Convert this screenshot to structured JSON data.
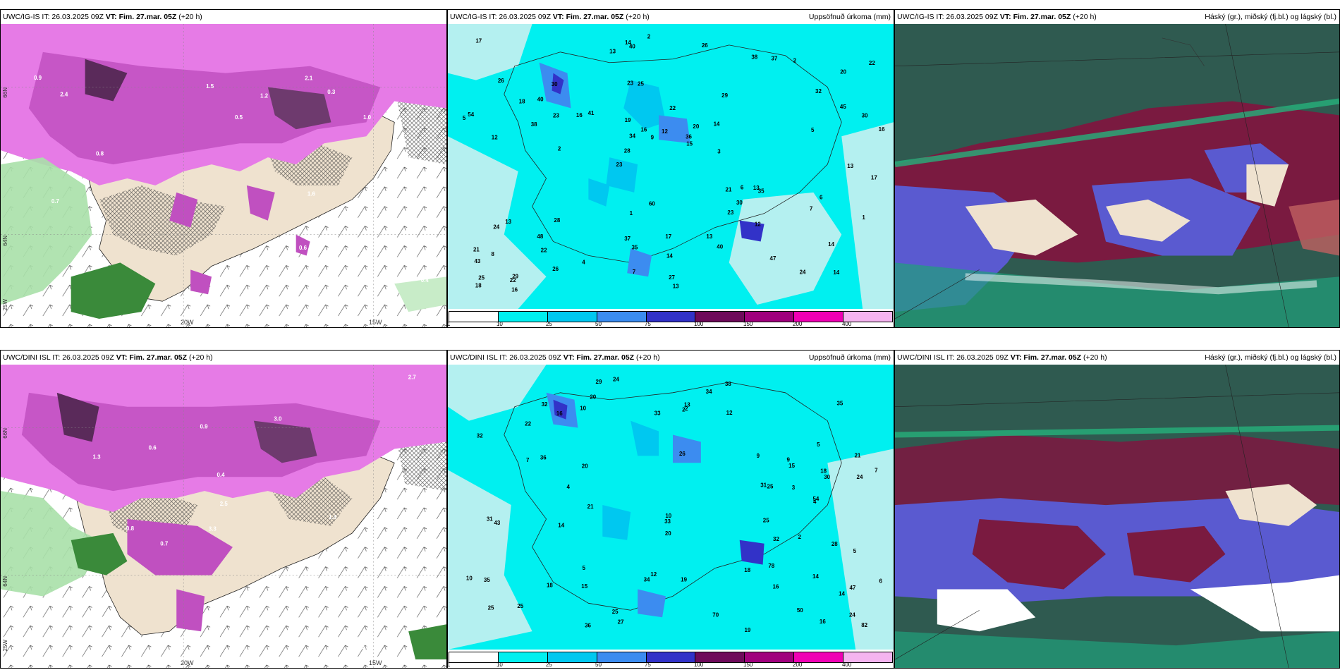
{
  "rows": [
    {
      "model_name": "UWC/IG-IS",
      "run_label": "IT: 26.03.2025 09Z",
      "vt_label": "VT: Fim. 27.mar. 05Z",
      "lead": "(+20 h)",
      "left_header_run": "UWC/IG-IS IT: 26.03.2025 09Z",
      "left_header_vt": "VT: Fim. 27.mar. 05Z",
      "left_header_lead": "(+20 h)"
    },
    {
      "model_name": "UWC/DINI ISL",
      "run_label": "IT: 26.03.2025 09Z",
      "vt_label": "VT: Fim. 27.mar. 05Z",
      "lead": "(+20 h)",
      "left_header_run": "UWC/DINI ISL IT: 26.03.2025 09Z",
      "left_header_vt": "VT: Fim. 27.mar. 05Z",
      "left_header_lead": "(+20 h)"
    }
  ],
  "precip_title": "Uppsöfnuð úrkoma (mm)",
  "cloud_title": "Háský (gr.), miðský (fj.bl.) og lágský (bl.)",
  "lon_labels": [
    "20W",
    "15W",
    "25W"
  ],
  "lat_labels": [
    "66N",
    "64N"
  ],
  "precip_legend": {
    "ticks": [
      "1",
      "10",
      "25",
      "50",
      "75",
      "100",
      "150",
      "200",
      "400"
    ],
    "colors": [
      "#ffffff",
      "#00f0f0",
      "#00c8f0",
      "#3c8cf0",
      "#3232c8",
      "#6e0a5a",
      "#a0007d",
      "#f000b4",
      "#f5b4f0"
    ]
  },
  "precip_values_top": [
    "14",
    "12",
    "20",
    "23",
    "29",
    "29",
    "23",
    "22",
    "13",
    "41",
    "43",
    "22",
    "25",
    "20",
    "35",
    "26",
    "40",
    "16",
    "21",
    "45",
    "28",
    "37",
    "34",
    "30",
    "38",
    "28",
    "24",
    "14",
    "13",
    "13",
    "16",
    "38",
    "23",
    "26",
    "30",
    "36",
    "25",
    "35",
    "15",
    "24",
    "32",
    "22",
    "30",
    "40",
    "48",
    "16",
    "18",
    "17",
    "2",
    "2",
    "2",
    "54",
    "40",
    "37",
    "22",
    "26",
    "13",
    "16",
    "1",
    "1",
    "4",
    "6",
    "23",
    "21",
    "17",
    "18",
    "17",
    "19",
    "14",
    "12",
    "8",
    "3",
    "6",
    "7",
    "5",
    "60",
    "47",
    "27",
    "13",
    "14",
    "13",
    "14",
    "12",
    "9",
    "7",
    "5"
  ],
  "precip_values_bottom": [
    "14",
    "21",
    "47",
    "26",
    "25",
    "20",
    "18",
    "15",
    "35",
    "36",
    "24",
    "32",
    "54",
    "27",
    "35",
    "22",
    "14",
    "10",
    "12",
    "30",
    "31",
    "43",
    "70",
    "31",
    "25",
    "34",
    "34",
    "12",
    "9",
    "6",
    "14",
    "16",
    "36",
    "33",
    "28",
    "50",
    "25",
    "33",
    "16",
    "21",
    "2",
    "3",
    "2",
    "4",
    "5",
    "32",
    "25",
    "38",
    "20",
    "15",
    "18",
    "20",
    "2",
    "7",
    "18",
    "25",
    "29",
    "32",
    "19",
    "13",
    "24",
    "78",
    "82",
    "19",
    "16",
    "24",
    "10",
    "10",
    "9",
    "7",
    "5",
    "4",
    "5"
  ],
  "wind_values_top": [
    "0.5",
    "0.6",
    "0.9",
    "1.0",
    "1.1",
    "1.5",
    "3.0",
    "2.1",
    "0.8",
    "0.7",
    "0.5",
    "1.2",
    "1.6",
    "2.4",
    "0.4",
    "0.3",
    "0.9",
    "0.6",
    "0.5"
  ],
  "wind_values_bottom": [
    "0.4",
    "1.0",
    "1.1",
    "0.3",
    "1.4",
    "3.3",
    "0.7",
    "2.5",
    "0.6",
    "0.8",
    "0.9",
    "1.3",
    "3.0",
    "2.7",
    "0.4",
    "0.3",
    "0.6",
    "1.5",
    "0.8"
  ]
}
